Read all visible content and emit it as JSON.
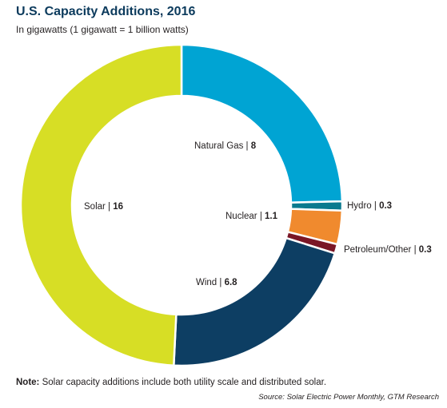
{
  "title": "U.S. Capacity Additions, 2016",
  "subtitle": "In gigawatts (1 gigawatt = 1 billion watts)",
  "note_label": "Note:",
  "note_text": " Solar capacity additions include both utility scale and distributed solar.",
  "source": "Source: Solar Electric Power Monthly, GTM Research",
  "label_separator": " | ",
  "chart_data": {
    "type": "pie",
    "donut": true,
    "unit": "gigawatts",
    "slices": [
      {
        "name": "Natural Gas",
        "value": 8,
        "display": "8",
        "color": "#00a4d3"
      },
      {
        "name": "Hydro",
        "value": 0.3,
        "display": "0.3",
        "color": "#0a7a8f"
      },
      {
        "name": "Nuclear",
        "value": 1.1,
        "display": "1.1",
        "color": "#f08a2e"
      },
      {
        "name": "Petroleum/Other",
        "value": 0.3,
        "display": "0.3",
        "color": "#7a1626"
      },
      {
        "name": "Wind",
        "value": 6.8,
        "display": "6.8",
        "color": "#0d3e63"
      },
      {
        "name": "Solar",
        "value": 16,
        "display": "16",
        "color": "#d7de25"
      }
    ]
  }
}
